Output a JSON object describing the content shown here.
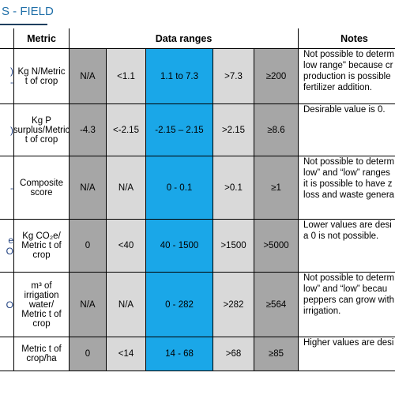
{
  "header": {
    "title": "S - FIELD"
  },
  "table": {
    "columns": {
      "metric": "Metric",
      "ranges": "Data ranges",
      "notes": "Notes"
    },
    "rows": [
      {
        "cut": [
          ")",
          "-"
        ],
        "metric": "Kg N/Metric t of crop",
        "ranges": [
          "N/A",
          "<1.1",
          "1.1 to 7.3",
          ">7.3",
          "≥200"
        ],
        "notes": [
          "Not possible to determ",
          "low range\" because cr",
          "production is possible",
          "fertilizer addition."
        ]
      },
      {
        "cut": [
          ")"
        ],
        "metric": "Kg P surplus/Metric t of crop",
        "ranges": [
          "-4.3",
          "<-2.15",
          "-2.15 – 2.15",
          ">2.15",
          "≥8.6"
        ],
        "notes": [
          "Desirable value is 0."
        ]
      },
      {
        "cut": [
          "-"
        ],
        "metric": "Composite score",
        "ranges": [
          "N/A",
          "N/A",
          "0 - 0.1",
          ">0.1",
          "≥1"
        ],
        "notes": [
          "Not possible to determ",
          "low” and “low” ranges",
          "it is possible to have z",
          "loss and waste genera"
        ]
      },
      {
        "cut": [
          "e",
          "O"
        ],
        "metric": "Kg CO₂e/ Metric t of crop",
        "ranges": [
          "0",
          "<40",
          "40 - 1500",
          ">1500",
          ">5000"
        ],
        "notes": [
          "Lower values are desi",
          "a 0 is not possible."
        ]
      },
      {
        "cut": [
          "O"
        ],
        "metric": "m³ of irrigation water/ Metric t of crop",
        "ranges": [
          "N/A",
          "N/A",
          "0 - 282",
          ">282",
          "≥564"
        ],
        "notes": [
          "Not possible to determ",
          "low” and “low” becau",
          "peppers can grow with",
          "irrigation."
        ]
      },
      {
        "cut": [],
        "metric": "Metric t of crop/ha",
        "ranges": [
          "0",
          "<14",
          "14 - 68",
          ">68",
          "≥85"
        ],
        "notes": [
          "Higher values are desi"
        ]
      }
    ]
  }
}
